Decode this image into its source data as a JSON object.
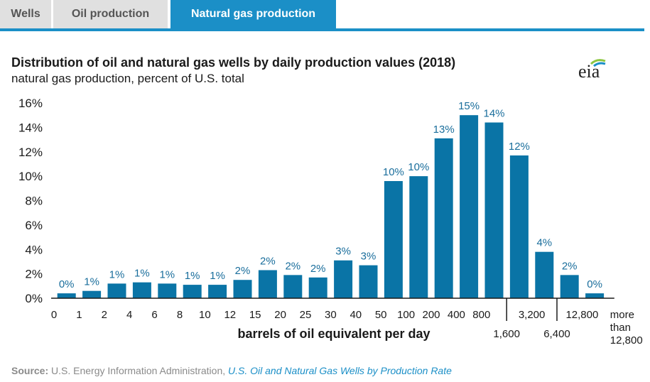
{
  "tabs": [
    {
      "label": "Wells",
      "active": false
    },
    {
      "label": "Oil production",
      "active": false
    },
    {
      "label": "Natural gas production",
      "active": true
    }
  ],
  "title": "Distribution of oil and natural gas wells by daily production values (2018)",
  "subtitle": "natural gas production, percent of U.S. total",
  "logo": "eia",
  "source": {
    "label": "Source:",
    "text": " U.S. Energy Information Administration, ",
    "link": "U.S. Oil and Natural Gas Wells by Production Rate"
  },
  "colors": {
    "bar": "#0a74a6",
    "label": "#1a6e9c",
    "accent": "#1b8fc7"
  },
  "chart_data": {
    "type": "bar",
    "title": "Distribution of oil and natural gas wells by daily production values (2018)",
    "subtitle": "natural gas production, percent of U.S. total",
    "xlabel": "barrels of oil equivalent per day",
    "ylabel": "",
    "ylim": [
      0,
      16
    ],
    "yticks": [
      "0%",
      "2%",
      "4%",
      "6%",
      "8%",
      "10%",
      "12%",
      "14%",
      "16%"
    ],
    "x_boundary_labels": [
      "0",
      "1",
      "2",
      "4",
      "6",
      "8",
      "10",
      "12",
      "15",
      "20",
      "25",
      "30",
      "40",
      "50",
      "100",
      "200",
      "400",
      "800",
      "1,600",
      "3,200",
      "6,400",
      "12,800",
      "more than 12,800"
    ],
    "values": [
      0.4,
      0.6,
      1.2,
      1.3,
      1.2,
      1.1,
      1.1,
      1.5,
      2.3,
      1.9,
      1.7,
      3.1,
      2.7,
      9.6,
      10.0,
      13.1,
      15.0,
      14.4,
      11.7,
      3.8,
      1.9,
      0.4
    ],
    "data_labels": [
      "0%",
      "1%",
      "1%",
      "1%",
      "1%",
      "1%",
      "1%",
      "2%",
      "2%",
      "2%",
      "2%",
      "3%",
      "3%",
      "10%",
      "10%",
      "13%",
      "15%",
      "14%",
      "12%",
      "4%",
      "2%",
      "0%"
    ],
    "grid": false,
    "legend": "none"
  }
}
